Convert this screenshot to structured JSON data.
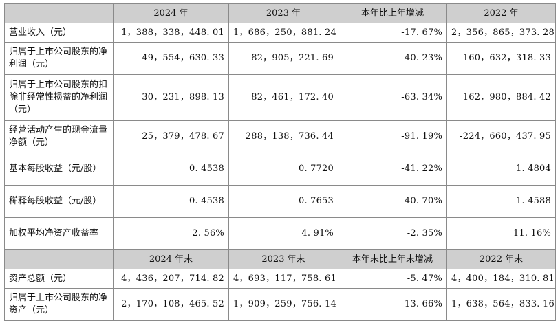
{
  "header1": [
    "",
    "2024 年",
    "2023 年",
    "本年比上年增减",
    "2022 年"
  ],
  "rows1": [
    {
      "label": "营业收入（元）",
      "v2024": "1，388，338，448. 01",
      "v2023": "1，686，250，881. 24",
      "change": "-17. 67%",
      "v2022": "2，356，865，373. 28"
    },
    {
      "label": "归属于上市公司股东的净利润（元）",
      "v2024": "49，554，630. 33",
      "v2023": "82，905，221. 69",
      "change": "-40. 23%",
      "v2022": "160，632，318. 33"
    },
    {
      "label": "归属于上市公司股东的扣除非经常性损益的净利润（元）",
      "v2024": "30，231，898. 13",
      "v2023": "82，461，172. 40",
      "change": "-63. 34%",
      "v2022": "162，980，884. 42"
    },
    {
      "label": "经营活动产生的现金流量净额（元）",
      "v2024": "25，379，478. 67",
      "v2023": "288，138，736. 44",
      "change": "-91. 19%",
      "v2022": "-224，660，437. 95"
    },
    {
      "label": "基本每股收益（元/股）",
      "v2024": "0. 4538",
      "v2023": "0. 7720",
      "change": "-41. 22%",
      "v2022": "1. 4804"
    },
    {
      "label": "稀释每股收益（元/股）",
      "v2024": "0. 4538",
      "v2023": "0. 7653",
      "change": "-40. 70%",
      "v2022": "1. 4588"
    },
    {
      "label": "加权平均净资产收益率",
      "v2024": "2. 56%",
      "v2023": "4. 91%",
      "change": "-2. 35%",
      "v2022": "11. 16%"
    }
  ],
  "header2": [
    "",
    "2024 年末",
    "2023 年末",
    "本年末比上年末增减",
    "2022 年末"
  ],
  "rows2": [
    {
      "label": "资产总额（元）",
      "v2024": "4，436，207，714. 82",
      "v2023": "4，693，117，758. 61",
      "change": "-5. 47%",
      "v2022": "4，400，184，310. 81"
    },
    {
      "label": "归属于上市公司股东的净资产（元）",
      "v2024": "2，170，108，465. 52",
      "v2023": "1，909，259，756. 14",
      "change": "13. 66%",
      "v2022": "1，638，564，833. 16"
    }
  ]
}
